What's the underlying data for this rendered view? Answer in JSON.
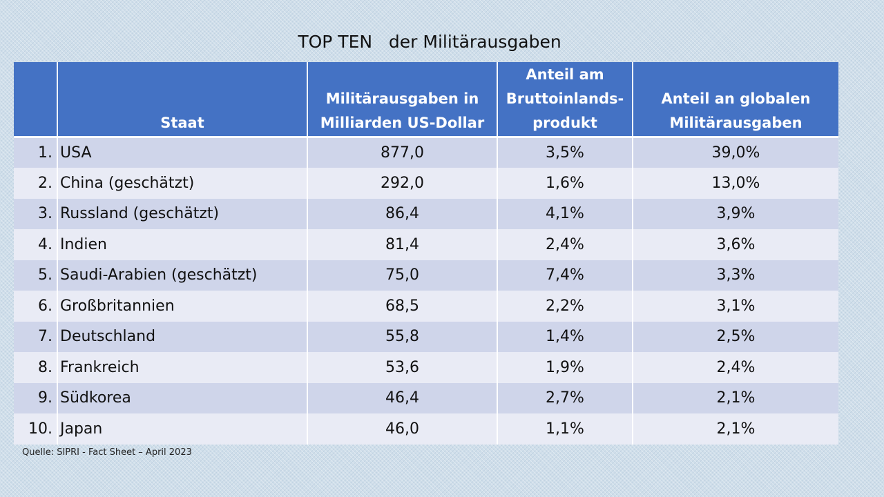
{
  "title": "TOP TEN   der Militärausgaben",
  "table": {
    "headers": {
      "staat": "Staat",
      "ausgaben_1": "Militärausgaben in",
      "ausgaben_2": "Milliarden US-Dollar",
      "bip_1": "Anteil am",
      "bip_2": "Bruttoinlands-",
      "bip_3": "produkt",
      "global_1": "Anteil an globalen",
      "global_2": "Militärausgaben"
    },
    "rows": [
      {
        "rank": "1.",
        "staat": "USA",
        "ausgaben": "877,0",
        "bip": "3,5%",
        "global": "39,0%"
      },
      {
        "rank": "2.",
        "staat": "China (geschätzt)",
        "ausgaben": "292,0",
        "bip": "1,6%",
        "global": "13,0%"
      },
      {
        "rank": "3.",
        "staat": "Russland (geschätzt)",
        "ausgaben": "86,4",
        "bip": "4,1%",
        "global": "3,9%"
      },
      {
        "rank": "4.",
        "staat": "Indien",
        "ausgaben": "81,4",
        "bip": "2,4%",
        "global": "3,6%"
      },
      {
        "rank": "5.",
        "staat": "Saudi-Arabien (geschätzt)",
        "ausgaben": "75,0",
        "bip": "7,4%",
        "global": "3,3%"
      },
      {
        "rank": "6.",
        "staat": "Großbritannien",
        "ausgaben": "68,5",
        "bip": "2,2%",
        "global": "3,1%"
      },
      {
        "rank": "7.",
        "staat": "Deutschland",
        "ausgaben": "55,8",
        "bip": "1,4%",
        "global": "2,5%"
      },
      {
        "rank": "8.",
        "staat": "Frankreich",
        "ausgaben": "53,6",
        "bip": "1,9%",
        "global": "2,4%"
      },
      {
        "rank": "9.",
        "staat": "Südkorea",
        "ausgaben": "46,4",
        "bip": "2,7%",
        "global": "2,1%"
      },
      {
        "rank": "10.",
        "staat": "Japan",
        "ausgaben": "46,0",
        "bip": "1,1%",
        "global": "2,1%"
      }
    ]
  },
  "source": "Quelle: SIPRI - Fact Sheet – April 2023",
  "colors": {
    "header": "#4472c4",
    "row_dark": "#cfd5ea",
    "row_light": "#e9ebf5",
    "background": "#cfdeea"
  }
}
